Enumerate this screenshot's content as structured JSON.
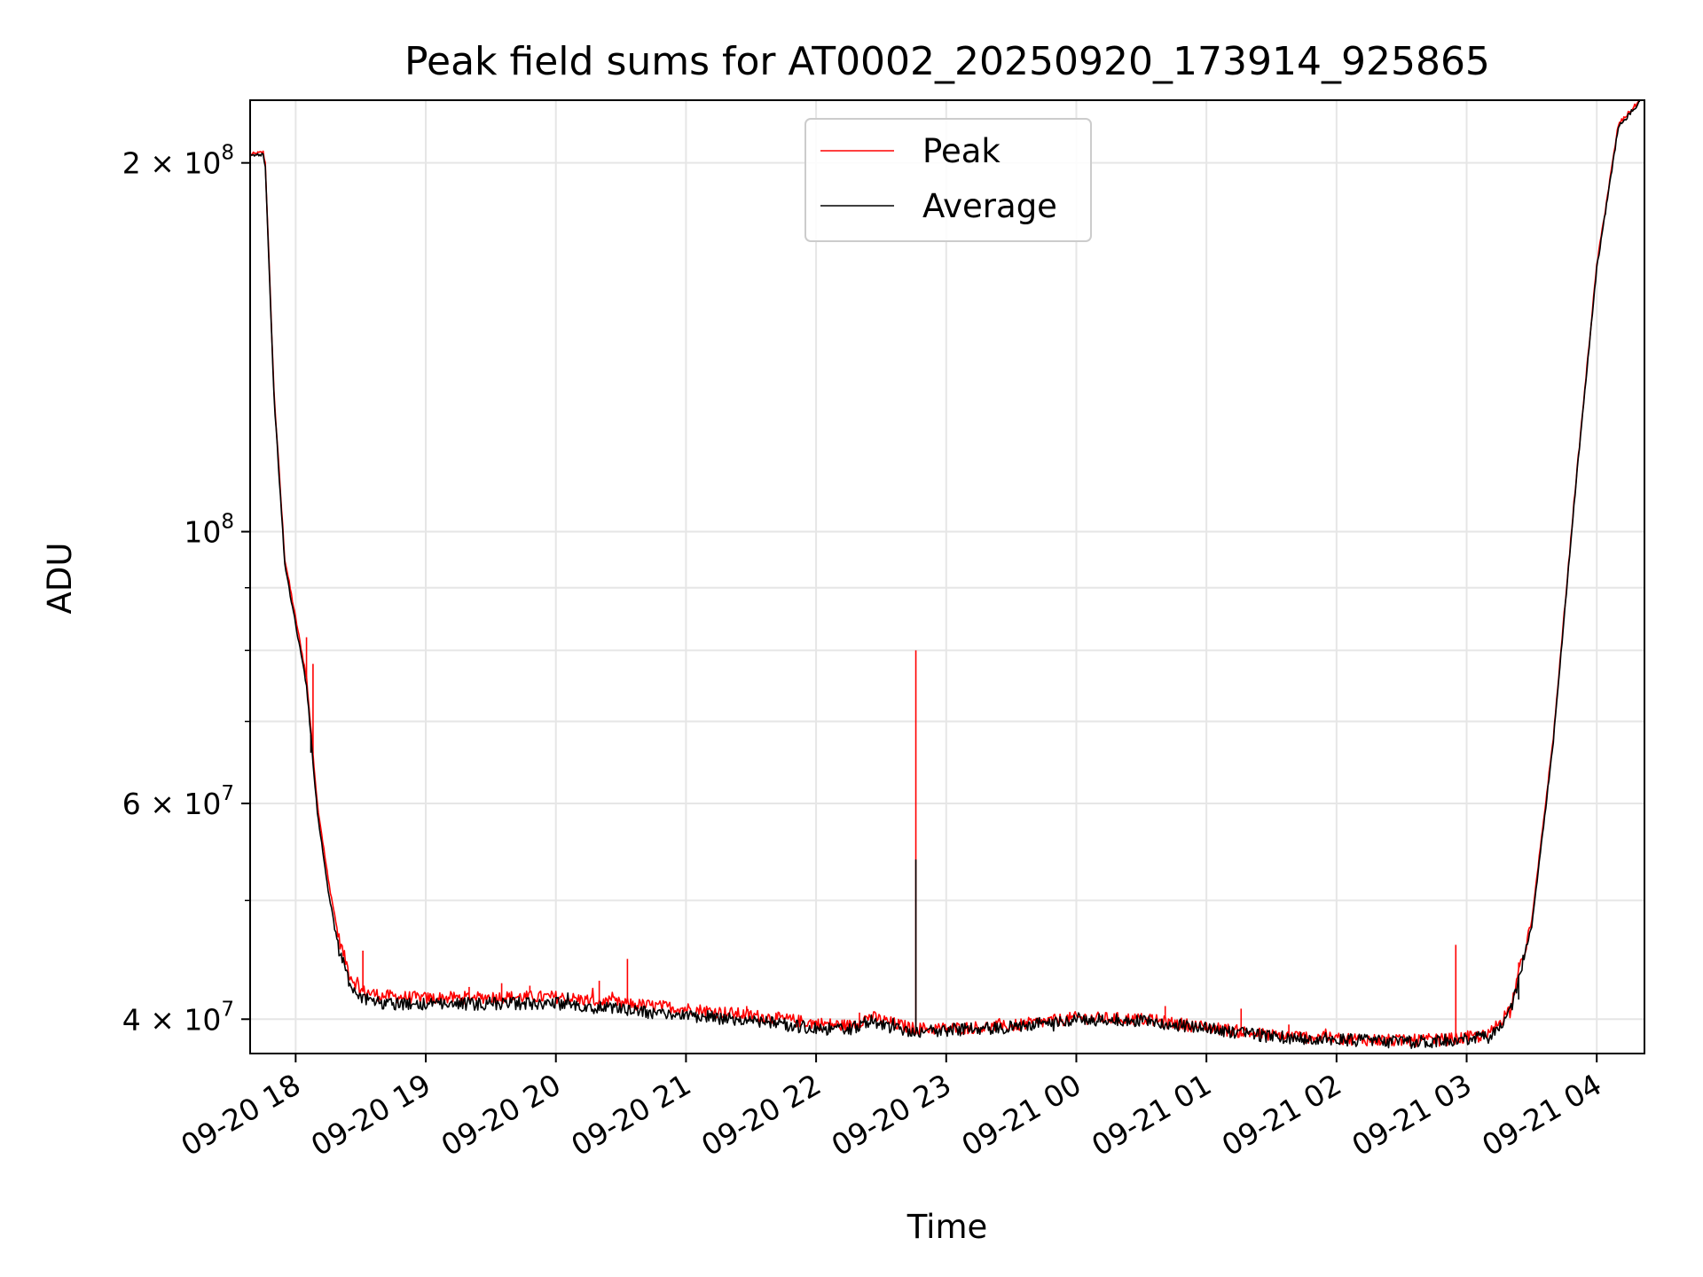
{
  "chart_data": {
    "type": "line",
    "title": "Peak field sums for AT0002_20250920_173914_925865",
    "xlabel": "Time",
    "ylabel": "ADU",
    "yscale": "log",
    "xlim": [
      "2025-09-20 17:39",
      "2025-09-21 04:22"
    ],
    "ylim": [
      37500000,
      225000000
    ],
    "grid": true,
    "legend_position": "top-center",
    "x_ticks": [
      {
        "t": "2025-09-20 18:00",
        "label": "09-20 18"
      },
      {
        "t": "2025-09-20 19:00",
        "label": "09-20 19"
      },
      {
        "t": "2025-09-20 20:00",
        "label": "09-20 20"
      },
      {
        "t": "2025-09-20 21:00",
        "label": "09-20 21"
      },
      {
        "t": "2025-09-20 22:00",
        "label": "09-20 22"
      },
      {
        "t": "2025-09-20 23:00",
        "label": "09-20 23"
      },
      {
        "t": "2025-09-21 00:00",
        "label": "09-21 00"
      },
      {
        "t": "2025-09-21 01:00",
        "label": "09-21 01"
      },
      {
        "t": "2025-09-21 02:00",
        "label": "09-21 02"
      },
      {
        "t": "2025-09-21 03:00",
        "label": "09-21 03"
      },
      {
        "t": "2025-09-21 04:00",
        "label": "09-21 04"
      }
    ],
    "y_ticks": [
      {
        "value": 40000000,
        "base": "4 × 10",
        "exp": "7"
      },
      {
        "value": 60000000,
        "base": "6 × 10",
        "exp": "7"
      },
      {
        "value": 100000000,
        "base": "10",
        "exp": "8"
      },
      {
        "value": 200000000,
        "base": "2 × 10",
        "exp": "8"
      }
    ],
    "y_minor_ticks": [
      50000000,
      70000000,
      80000000,
      90000000
    ],
    "series": [
      {
        "name": "Peak",
        "color": "#ff0000",
        "points": [
          [
            "2025-09-20 17:39",
            203000000
          ],
          [
            "2025-09-20 17:45",
            204000000
          ],
          [
            "2025-09-20 17:46",
            200000000
          ],
          [
            "2025-09-20 17:50",
            130000000
          ],
          [
            "2025-09-20 17:55",
            95000000
          ],
          [
            "2025-09-20 18:05",
            76000000
          ],
          [
            "2025-09-20 18:10",
            60000000
          ],
          [
            "2025-09-20 18:15",
            52000000
          ],
          [
            "2025-09-20 18:20",
            46500000
          ],
          [
            "2025-09-20 18:25",
            43500000
          ],
          [
            "2025-09-20 18:30",
            42200000
          ],
          [
            "2025-09-20 18:40",
            41800000
          ],
          [
            "2025-09-20 19:00",
            41600000
          ],
          [
            "2025-09-20 19:30",
            41700000
          ],
          [
            "2025-09-20 20:00",
            41700000
          ],
          [
            "2025-09-20 20:30",
            41200000
          ],
          [
            "2025-09-20 21:00",
            40800000
          ],
          [
            "2025-09-20 21:30",
            40300000
          ],
          [
            "2025-09-20 22:00",
            39700000
          ],
          [
            "2025-09-20 22:15",
            39500000
          ],
          [
            "2025-09-20 22:25",
            40200000
          ],
          [
            "2025-09-20 22:35",
            39700000
          ],
          [
            "2025-09-20 22:45",
            39300000
          ],
          [
            "2025-09-20 23:00",
            39300000
          ],
          [
            "2025-09-20 23:30",
            39500000
          ],
          [
            "2025-09-21 00:00",
            40100000
          ],
          [
            "2025-09-21 00:30",
            40000000
          ],
          [
            "2025-09-21 01:00",
            39400000
          ],
          [
            "2025-09-21 01:30",
            38800000
          ],
          [
            "2025-09-21 02:00",
            38600000
          ],
          [
            "2025-09-21 02:30",
            38400000
          ],
          [
            "2025-09-21 02:50",
            38500000
          ],
          [
            "2025-09-21 03:10",
            38800000
          ],
          [
            "2025-09-21 03:20",
            40800000
          ],
          [
            "2025-09-21 03:30",
            48000000
          ],
          [
            "2025-09-21 03:40",
            68000000
          ],
          [
            "2025-09-21 03:50",
            108000000
          ],
          [
            "2025-09-21 04:00",
            165000000
          ],
          [
            "2025-09-21 04:10",
            215000000
          ],
          [
            "2025-09-21 04:20",
            225000000
          ]
        ],
        "spikes": [
          [
            "2025-09-20 18:05",
            82000000
          ],
          [
            "2025-09-20 18:08",
            78000000
          ],
          [
            "2025-09-20 18:31",
            45500000
          ],
          [
            "2025-09-20 19:20",
            42500000
          ],
          [
            "2025-09-20 19:35",
            42800000
          ],
          [
            "2025-09-20 19:48",
            42600000
          ],
          [
            "2025-09-20 20:20",
            43000000
          ],
          [
            "2025-09-20 20:33",
            44800000
          ],
          [
            "2025-09-20 21:28",
            41000000
          ],
          [
            "2025-09-20 22:20",
            40500000
          ],
          [
            "2025-09-20 22:46",
            80000000
          ],
          [
            "2025-09-21 00:41",
            41000000
          ],
          [
            "2025-09-21 01:16",
            40800000
          ],
          [
            "2025-09-21 01:38",
            39600000
          ],
          [
            "2025-09-21 02:23",
            38700000
          ],
          [
            "2025-09-21 02:46",
            38400000
          ],
          [
            "2025-09-21 02:55",
            46000000
          ],
          [
            "2025-09-21 03:24",
            44500000
          ]
        ]
      },
      {
        "name": "Average",
        "color": "#000000",
        "points": [
          [
            "2025-09-20 17:39",
            202500000
          ],
          [
            "2025-09-20 17:45",
            203500000
          ],
          [
            "2025-09-20 17:46",
            199000000
          ],
          [
            "2025-09-20 17:50",
            129000000
          ],
          [
            "2025-09-20 17:55",
            94000000
          ],
          [
            "2025-09-20 18:05",
            75000000
          ],
          [
            "2025-09-20 18:10",
            59000000
          ],
          [
            "2025-09-20 18:15",
            51000000
          ],
          [
            "2025-09-20 18:20",
            45500000
          ],
          [
            "2025-09-20 18:25",
            42800000
          ],
          [
            "2025-09-20 18:30",
            41600000
          ],
          [
            "2025-09-20 18:40",
            41200000
          ],
          [
            "2025-09-20 19:00",
            41100000
          ],
          [
            "2025-09-20 19:30",
            41200000
          ],
          [
            "2025-09-20 20:00",
            41200000
          ],
          [
            "2025-09-20 20:30",
            40700000
          ],
          [
            "2025-09-20 21:00",
            40300000
          ],
          [
            "2025-09-20 21:30",
            39900000
          ],
          [
            "2025-09-20 22:00",
            39300000
          ],
          [
            "2025-09-20 22:15",
            39200000
          ],
          [
            "2025-09-20 22:25",
            39900000
          ],
          [
            "2025-09-20 22:35",
            39400000
          ],
          [
            "2025-09-20 22:45",
            39100000
          ],
          [
            "2025-09-20 23:00",
            39200000
          ],
          [
            "2025-09-20 23:30",
            39400000
          ],
          [
            "2025-09-21 00:00",
            40000000
          ],
          [
            "2025-09-21 00:30",
            39900000
          ],
          [
            "2025-09-21 01:00",
            39300000
          ],
          [
            "2025-09-21 01:30",
            38700000
          ],
          [
            "2025-09-21 02:00",
            38500000
          ],
          [
            "2025-09-21 02:30",
            38300000
          ],
          [
            "2025-09-21 02:50",
            38400000
          ],
          [
            "2025-09-21 03:10",
            38700000
          ],
          [
            "2025-09-21 03:20",
            40500000
          ],
          [
            "2025-09-21 03:30",
            47500000
          ],
          [
            "2025-09-21 03:40",
            67500000
          ],
          [
            "2025-09-21 03:50",
            107500000
          ],
          [
            "2025-09-21 04:00",
            164000000
          ],
          [
            "2025-09-21 04:10",
            214000000
          ],
          [
            "2025-09-21 04:20",
            224500000
          ]
        ],
        "spikes": [
          [
            "2025-09-20 18:07",
            66000000
          ],
          [
            "2025-09-20 22:46",
            54000000
          ],
          [
            "2025-09-21 03:24",
            41500000
          ]
        ]
      }
    ]
  }
}
